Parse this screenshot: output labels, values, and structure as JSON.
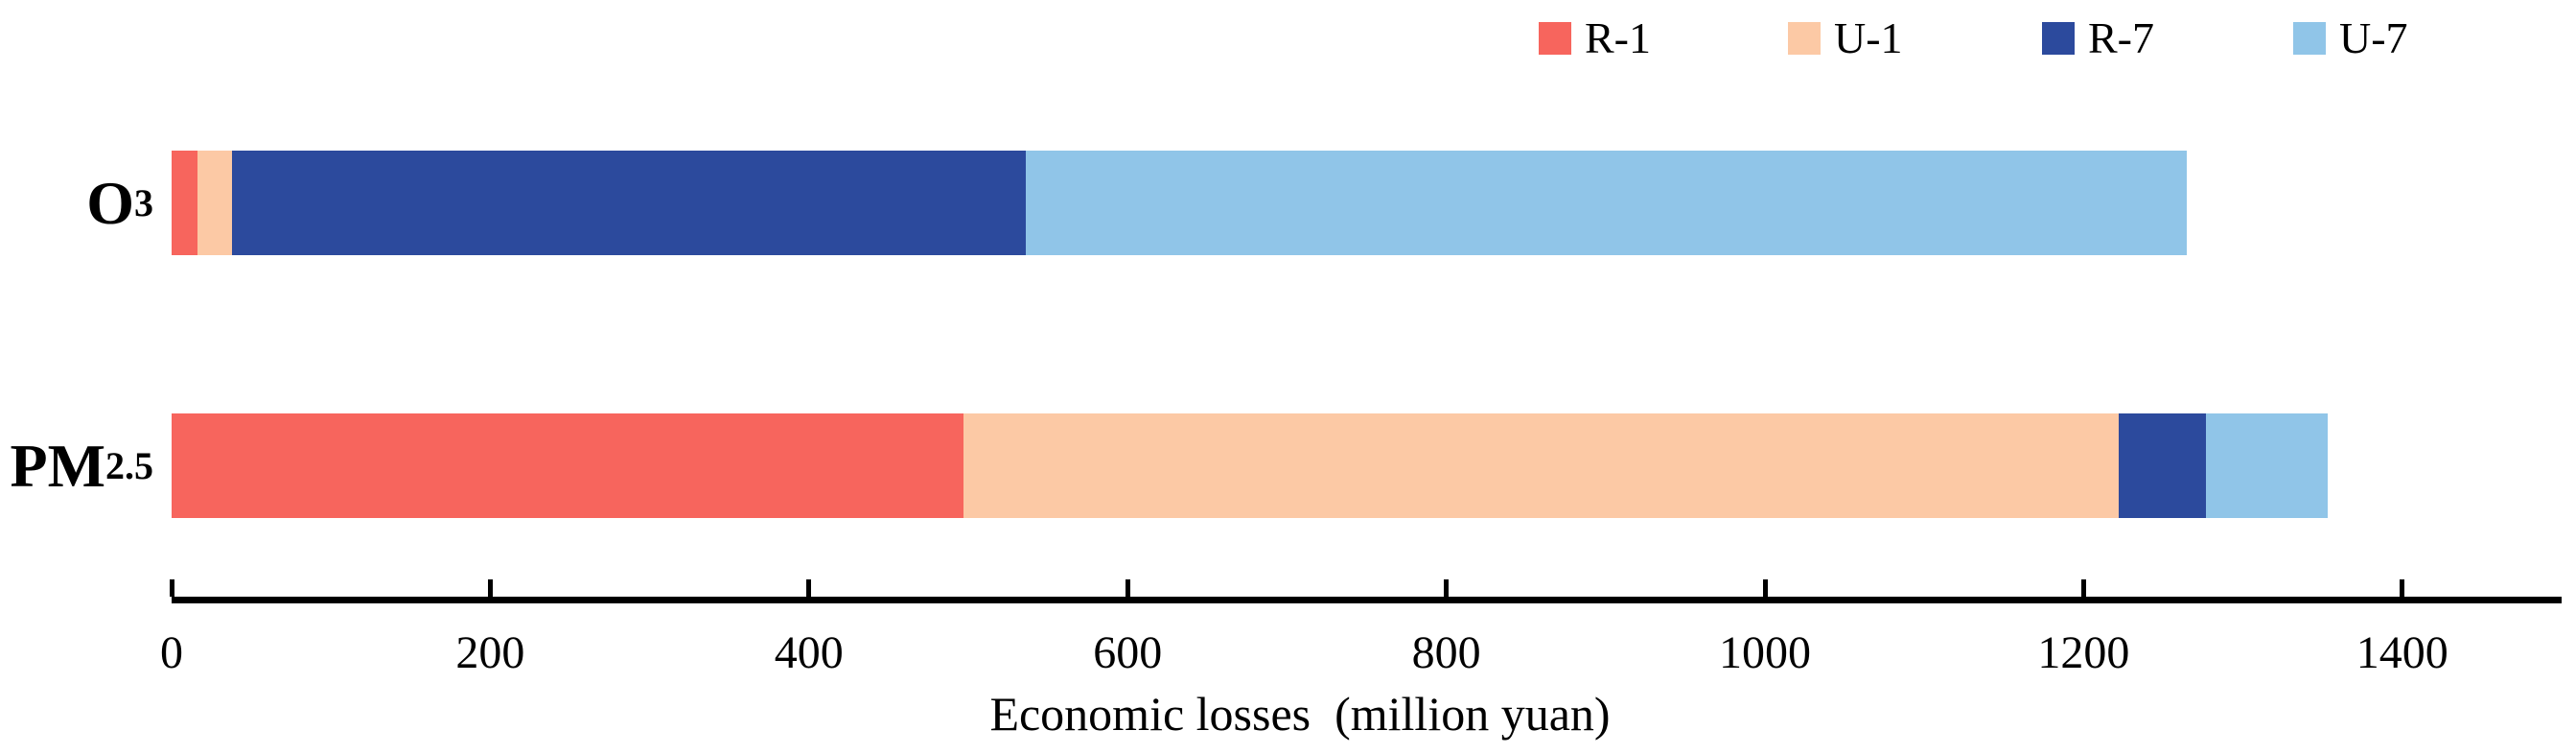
{
  "chart_data": {
    "type": "bar",
    "orientation": "horizontal",
    "stacked": true,
    "grid": false,
    "legend_position": "top-right",
    "categories": [
      "O3",
      "PM2.5"
    ],
    "categories_display": [
      {
        "base": "O",
        "sub": "3"
      },
      {
        "base": "PM",
        "sub": "2.5"
      }
    ],
    "series": [
      {
        "name": "R-1",
        "color": "#F7655D",
        "values": [
          16,
          497
        ]
      },
      {
        "name": "U-1",
        "color": "#FCC9A5",
        "values": [
          22,
          725
        ]
      },
      {
        "name": "R-7",
        "color": "#2C4A9D",
        "values": [
          498,
          55
        ]
      },
      {
        "name": "U-7",
        "color": "#90C5E8",
        "values": [
          729,
          76
        ]
      }
    ],
    "totals": [
      1265,
      1353
    ],
    "xlabel": "Economic losses  (million yuan)",
    "xlim": [
      0,
      1500
    ],
    "xticks": [
      0,
      200,
      400,
      600,
      800,
      1000,
      1200,
      1400
    ]
  },
  "legend": {
    "items": [
      {
        "label": "R-1",
        "color": "#F7655D"
      },
      {
        "label": "U-1",
        "color": "#FCC9A5"
      },
      {
        "label": "R-7",
        "color": "#2C4A9D"
      },
      {
        "label": "U-7",
        "color": "#90C5E8"
      }
    ]
  },
  "colors": {
    "axis": "#000000",
    "text": "#000000",
    "background": "#ffffff"
  }
}
